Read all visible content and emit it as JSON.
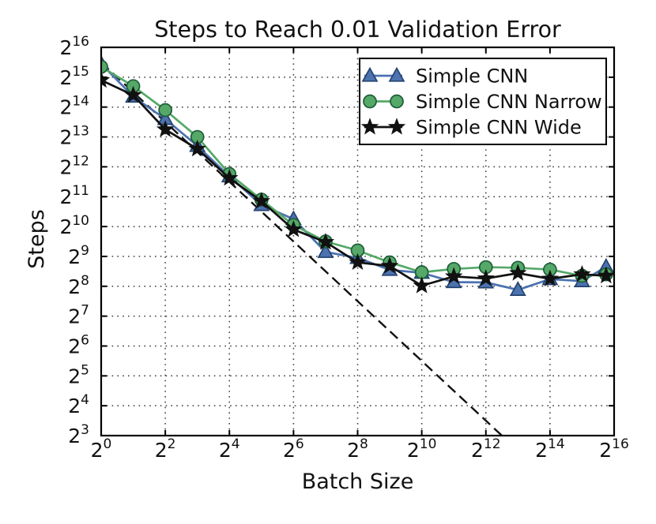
{
  "figure": {
    "title": "Steps to Reach 0.01 Validation Error",
    "xlabel": "Batch Size",
    "ylabel": "Steps"
  },
  "chart_data": {
    "type": "line",
    "title": "Steps to Reach 0.01 Validation Error",
    "xlabel": "Batch Size",
    "ylabel": "Steps",
    "x_scale": "log2",
    "y_scale": "log2",
    "tick_label_base": 2,
    "x_range_log2": [
      0,
      16
    ],
    "y_range_log2": [
      3,
      16
    ],
    "x_ticks_log2": [
      0,
      2,
      4,
      6,
      8,
      10,
      12,
      14,
      16
    ],
    "y_ticks_log2": [
      3,
      4,
      5,
      6,
      7,
      8,
      9,
      10,
      11,
      12,
      13,
      14,
      15,
      16
    ],
    "grid": true,
    "legend_position": "upper right",
    "x_log2": [
      0,
      1,
      2,
      3,
      4,
      5,
      6,
      7,
      8,
      9,
      10,
      11,
      12,
      13,
      14,
      15,
      15.75
    ],
    "series": [
      {
        "name": "Simple CNN",
        "marker": "triangle",
        "line_color": "#4C72B0",
        "marker_fill": "#4C72B0",
        "marker_edge": "#24436F",
        "y_log2": [
          15.45,
          14.35,
          13.6,
          12.7,
          11.68,
          10.72,
          10.25,
          9.15,
          8.95,
          8.55,
          8.45,
          8.14,
          8.13,
          7.88,
          8.24,
          8.17,
          8.65
        ]
      },
      {
        "name": "Simple CNN Narrow",
        "marker": "circle",
        "line_color": "#55A868",
        "marker_fill": "#55A868",
        "marker_edge": "#1E5C38",
        "y_log2": [
          15.35,
          14.7,
          13.9,
          13.0,
          11.76,
          10.9,
          10.05,
          9.5,
          9.2,
          8.8,
          8.47,
          8.58,
          8.64,
          8.62,
          8.56,
          8.35,
          8.4
        ]
      },
      {
        "name": "Simple CNN Wide",
        "marker": "star",
        "line_color": "#111111",
        "marker_fill": "#111111",
        "marker_edge": "#111111",
        "y_log2": [
          14.9,
          14.4,
          13.25,
          12.6,
          11.62,
          10.85,
          9.9,
          9.48,
          8.8,
          8.68,
          8.02,
          8.33,
          8.26,
          8.44,
          8.25,
          8.4,
          8.35
        ]
      }
    ],
    "reference_line": {
      "style": "dashed",
      "color": "#111111",
      "from_log2": [
        0,
        15.5
      ],
      "to_log2": [
        12.5,
        3.0
      ]
    }
  }
}
